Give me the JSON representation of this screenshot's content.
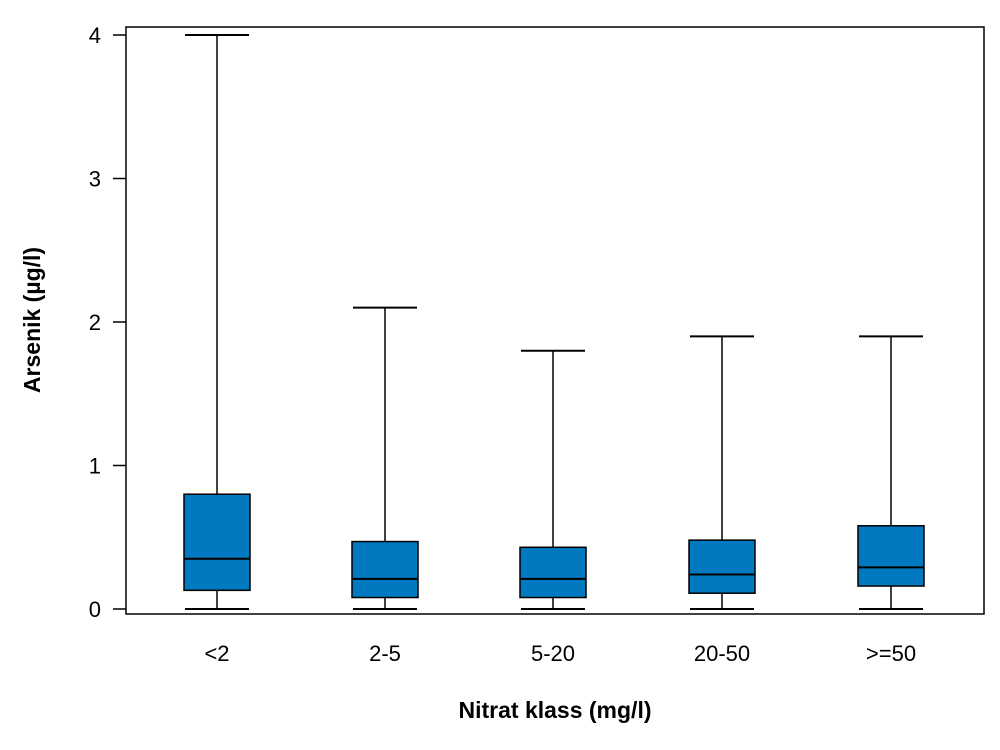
{
  "chart_data": {
    "type": "boxplot",
    "title": "",
    "xlabel": "Nitrat klass (mg/l)",
    "ylabel": "Arsenik (µg/l)",
    "ylim": [
      0,
      4
    ],
    "yticks": [
      "0",
      "1",
      "2",
      "3",
      "4"
    ],
    "grid": false,
    "legend": "none",
    "box_color": "#0079c1",
    "categories": [
      "<2",
      "2-5",
      "5-20",
      "20-50",
      ">=50"
    ],
    "boxes": [
      {
        "min": 0.0,
        "q1": 0.13,
        "median": 0.35,
        "q3": 0.8,
        "max": 4.0
      },
      {
        "min": 0.0,
        "q1": 0.08,
        "median": 0.21,
        "q3": 0.47,
        "max": 2.1
      },
      {
        "min": 0.0,
        "q1": 0.08,
        "median": 0.21,
        "q3": 0.43,
        "max": 1.8
      },
      {
        "min": 0.0,
        "q1": 0.11,
        "median": 0.24,
        "q3": 0.48,
        "max": 1.9
      },
      {
        "min": 0.0,
        "q1": 0.16,
        "median": 0.29,
        "q3": 0.58,
        "max": 1.9
      }
    ]
  }
}
